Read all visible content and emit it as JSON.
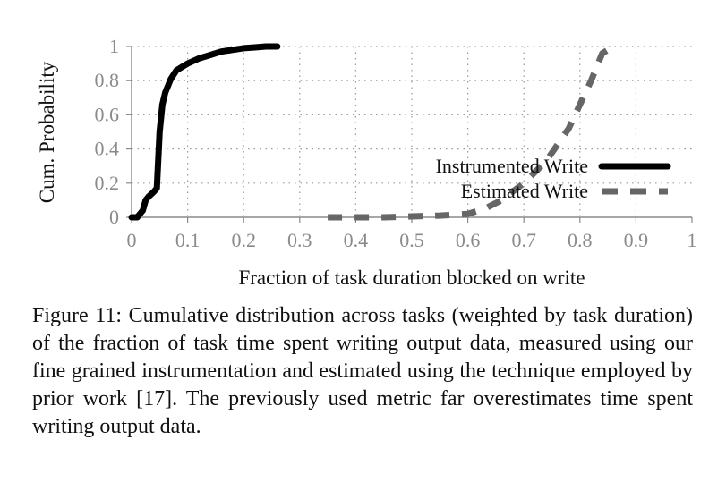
{
  "chart_data": {
    "type": "line",
    "xlabel": "Fraction of task duration blocked on write",
    "ylabel": "Cum. Probability",
    "xlim": [
      0,
      1
    ],
    "ylim": [
      0,
      1
    ],
    "x_ticks": [
      "0",
      "0.1",
      "0.2",
      "0.3",
      "0.4",
      "0.5",
      "0.6",
      "0.7",
      "0.8",
      "0.9",
      "1"
    ],
    "y_ticks": [
      "0",
      "0.2",
      "0.4",
      "0.6",
      "0.8",
      "1"
    ],
    "grid": "dotted",
    "legend_position": "right",
    "series": [
      {
        "name": "Instrumented Write",
        "style": "solid",
        "color": "#000000",
        "x": [
          0.0,
          0.01,
          0.015,
          0.02,
          0.025,
          0.03,
          0.04,
          0.045,
          0.05,
          0.055,
          0.06,
          0.07,
          0.08,
          0.09,
          0.1,
          0.12,
          0.14,
          0.16,
          0.18,
          0.2,
          0.22,
          0.24,
          0.26
        ],
        "y": [
          0.0,
          0.0,
          0.02,
          0.04,
          0.1,
          0.12,
          0.15,
          0.17,
          0.5,
          0.66,
          0.73,
          0.81,
          0.86,
          0.88,
          0.9,
          0.93,
          0.95,
          0.97,
          0.98,
          0.99,
          0.995,
          1.0,
          1.0
        ]
      },
      {
        "name": "Estimated Write",
        "style": "dashed",
        "color": "#666666",
        "x": [
          0.35,
          0.4,
          0.45,
          0.5,
          0.55,
          0.6,
          0.63,
          0.66,
          0.7,
          0.74,
          0.78,
          0.8,
          0.82,
          0.84,
          0.86
        ],
        "y": [
          0.0,
          0.0,
          0.0,
          0.005,
          0.01,
          0.02,
          0.05,
          0.1,
          0.2,
          0.33,
          0.52,
          0.66,
          0.8,
          0.96,
          1.0
        ]
      }
    ]
  },
  "caption": "Figure 11: Cumulative distribution across tasks (weighted by task duration) of the fraction of task time spent writing output data, measured using our fine grained instrumentation and estimated using the technique employed by prior work [17]. The previously used metric far overestimates time spent writing output data."
}
